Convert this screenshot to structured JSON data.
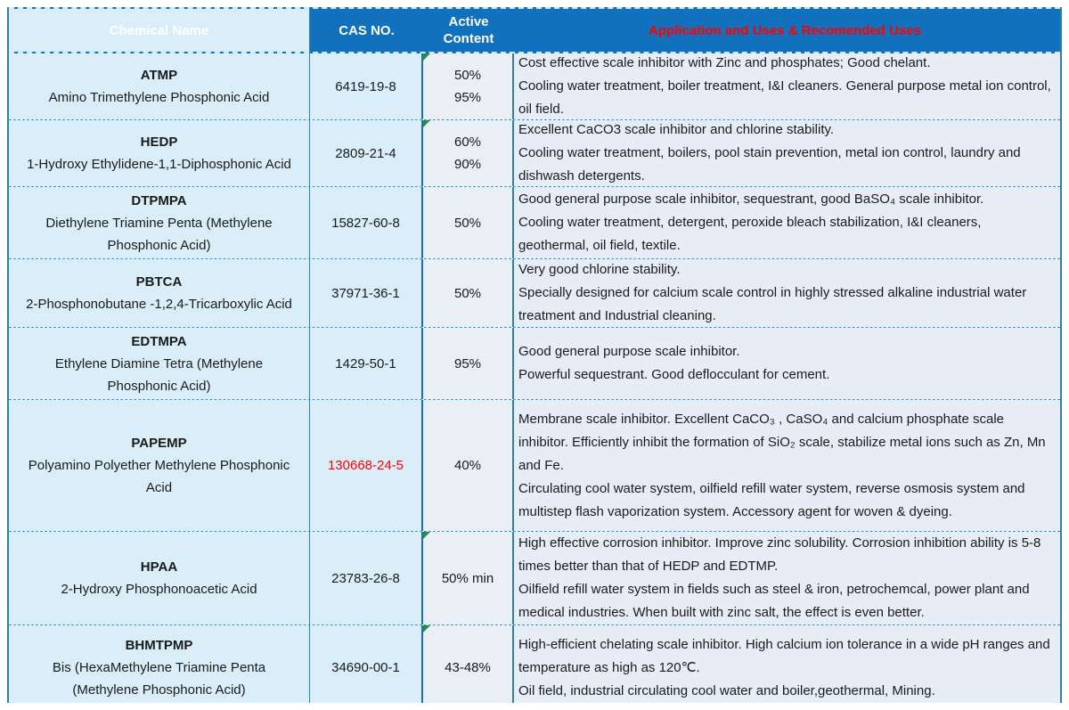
{
  "header": {
    "chemical_name": "Chemical Name",
    "cas_no": "CAS NO.",
    "active_content": "Active Content",
    "application": "Application and Uses & Recomended Uses"
  },
  "colors": {
    "header_bg": "#1171BD",
    "header_text": "#FFFFFF",
    "application_header_text": "#FF0000",
    "name_cas_cell_bg": "#DAEEF9",
    "active_cell_bg": "#EAEEF5",
    "application_cell_bg": "#E7EDF6",
    "dashed_border": "#2E9AD3",
    "highlight_cas": "#FF0000",
    "error_marker_green": "#2F8A3A"
  },
  "rows": [
    {
      "abbr": "ATMP",
      "full_name": "Amino Trimethylene Phosphonic Acid",
      "cas": "6419-19-8",
      "active": "50%\n95%",
      "error_marker": true,
      "uses": [
        "Cost effective scale inhibitor with Zinc and phosphates; Good chelant.",
        "Cooling water treatment, boiler treatment, I&I cleaners. General purpose metal ion control, oil field."
      ]
    },
    {
      "abbr": "HEDP",
      "full_name": "1-Hydroxy Ethylidene-1,1-Diphosphonic Acid",
      "cas": "2809-21-4",
      "active": "60%\n90%",
      "error_marker": true,
      "uses": [
        "Excellent CaCO3 scale inhibitor and chlorine stability.",
        "Cooling water treatment, boilers, pool stain prevention, metal ion control, laundry and dishwash detergents."
      ]
    },
    {
      "abbr": "DTPMPA",
      "full_name": "Diethylene Triamine Penta (Methylene Phosphonic Acid)",
      "cas": "15827-60-8",
      "active": "50%",
      "error_marker": false,
      "uses": [
        "Good general purpose scale inhibitor, sequestrant, good BaSO₄ scale inhibitor.",
        "Cooling water treatment, detergent, peroxide bleach stabilization, I&I cleaners, geothermal, oil field, textile."
      ]
    },
    {
      "abbr": "PBTCA",
      "full_name": "2-Phosphonobutane -1,2,4-Tricarboxylic Acid",
      "cas": "37971-36-1",
      "active": "50%",
      "error_marker": false,
      "uses": [
        "Very good chlorine stability.",
        "Specially designed for calcium scale control in highly stressed alkaline industrial water treatment and Industrial cleaning."
      ]
    },
    {
      "abbr": "EDTMPA",
      "full_name": "Ethylene Diamine Tetra (Methylene Phosphonic Acid)",
      "cas": "1429-50-1",
      "active": "95%",
      "error_marker": false,
      "uses": [
        "Good general purpose scale inhibitor.",
        "Powerful sequestrant. Good deflocculant for cement."
      ]
    },
    {
      "abbr": "PAPEMP",
      "full_name": "Polyamino Polyether Methylene Phosphonic Acid",
      "cas": "130668-24-5",
      "cas_color": "#FF0000",
      "active": "40%",
      "error_marker": false,
      "uses": [
        "Membrane scale inhibitor. Excellent CaCO₃ , CaSO₄ and calcium phosphate scale inhibitor. Efficiently inhibit the formation of SiO₂ scale, stabilize metal ions such as Zn, Mn and Fe.",
        "Circulating cool water system, oilfield refill water system, reverse osmosis system and multistep flash vaporization system. Accessory agent for woven & dyeing."
      ]
    },
    {
      "abbr": "HPAA",
      "full_name": "2-Hydroxy Phosphonoacetic Acid",
      "cas": "23783-26-8",
      "active": "50% min",
      "error_marker": true,
      "uses": [
        "High effective corrosion inhibitor. Improve zinc solubility. Corrosion inhibition ability is 5-8 times better than that of HEDP and EDTMP.",
        "Oilfield refill water system in fields such as steel & iron, petrochemcal, power plant and medical industries. When built with zinc salt, the effect is even better."
      ]
    },
    {
      "abbr": "BHMTPMP",
      "full_name": "Bis (HexaMethylene Triamine Penta (Methylene Phosphonic Acid)",
      "cas": "34690-00-1",
      "active": "43-48%",
      "error_marker": true,
      "uses": [
        "High-efficient chelating scale inhibitor. High calcium ion tolerance in a wide pH ranges and temperature as high as 120℃.",
        "Oil field, industrial circulating cool water and boiler,geothermal, Mining."
      ]
    }
  ]
}
